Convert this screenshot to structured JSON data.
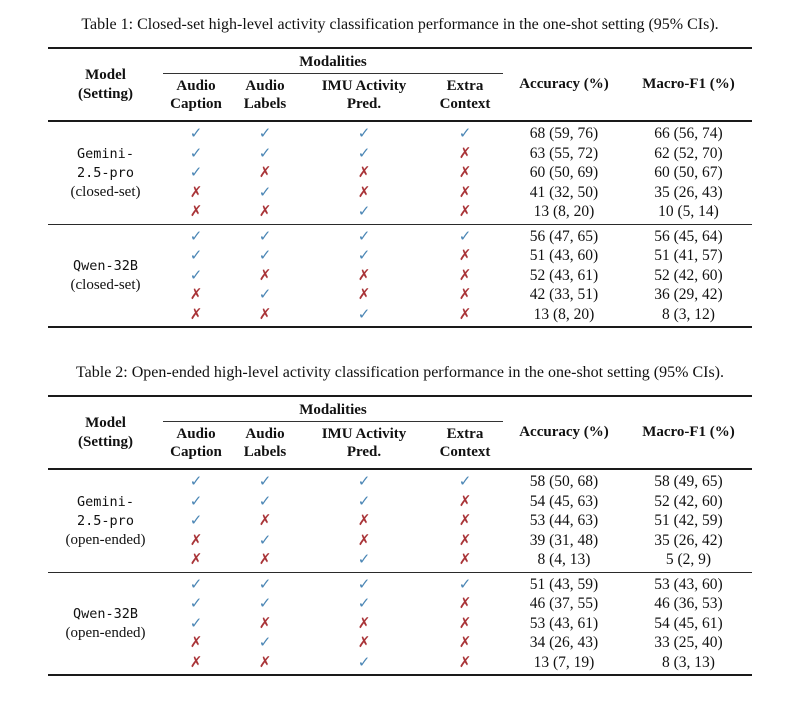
{
  "icons": {
    "check": "✓",
    "cross": "✗"
  },
  "colors": {
    "check_blue": "#4b86b5",
    "cross_red": "#a93438",
    "rule": "#1a1a1a",
    "text": "#111111",
    "background": "#ffffff"
  },
  "tables": [
    {
      "caption": "Table 1: Closed-set high-level activity classification performance in the one-shot setting (95% CIs).",
      "header": {
        "model_line1": "Model",
        "model_line2": "(Setting)",
        "modalities": "Modalities",
        "modality_columns": [
          {
            "line1": "Audio",
            "line2": "Caption"
          },
          {
            "line1": "Audio",
            "line2": "Labels"
          },
          {
            "line1": "IMU Activity",
            "line2": "Pred."
          },
          {
            "line1": "Extra",
            "line2": "Context"
          }
        ],
        "accuracy": "Accuracy (%)",
        "macro_f1": "Macro-F1 (%)"
      },
      "sections": [
        {
          "model_lines": [
            "Gemini-",
            "2.5-pro"
          ],
          "setting": "(closed-set)",
          "rows": [
            {
              "modalities": [
                true,
                true,
                true,
                true
              ],
              "accuracy": "68 (59, 76)",
              "macro_f1": "66 (56, 74)"
            },
            {
              "modalities": [
                true,
                true,
                true,
                false
              ],
              "accuracy": "63 (55, 72)",
              "macro_f1": "62 (52, 70)"
            },
            {
              "modalities": [
                true,
                false,
                false,
                false
              ],
              "accuracy": "60 (50, 69)",
              "macro_f1": "60 (50, 67)"
            },
            {
              "modalities": [
                false,
                true,
                false,
                false
              ],
              "accuracy": "41 (32, 50)",
              "macro_f1": "35 (26, 43)"
            },
            {
              "modalities": [
                false,
                false,
                true,
                false
              ],
              "accuracy": "13 (8, 20)",
              "macro_f1": "10 (5, 14)"
            }
          ]
        },
        {
          "model_lines": [
            "Qwen-32B"
          ],
          "setting": "(closed-set)",
          "rows": [
            {
              "modalities": [
                true,
                true,
                true,
                true
              ],
              "accuracy": "56 (47, 65)",
              "macro_f1": "56 (45, 64)"
            },
            {
              "modalities": [
                true,
                true,
                true,
                false
              ],
              "accuracy": "51 (43, 60)",
              "macro_f1": "51 (41, 57)"
            },
            {
              "modalities": [
                true,
                false,
                false,
                false
              ],
              "accuracy": "52 (43, 61)",
              "macro_f1": "52 (42, 60)"
            },
            {
              "modalities": [
                false,
                true,
                false,
                false
              ],
              "accuracy": "42 (33, 51)",
              "macro_f1": "36 (29, 42)"
            },
            {
              "modalities": [
                false,
                false,
                true,
                false
              ],
              "accuracy": "13 (8, 20)",
              "macro_f1": "8 (3, 12)"
            }
          ]
        }
      ]
    },
    {
      "caption": "Table 2: Open-ended high-level activity classification performance in the one-shot setting (95% CIs).",
      "header": {
        "model_line1": "Model",
        "model_line2": "(Setting)",
        "modalities": "Modalities",
        "modality_columns": [
          {
            "line1": "Audio",
            "line2": "Caption"
          },
          {
            "line1": "Audio",
            "line2": "Labels"
          },
          {
            "line1": "IMU Activity",
            "line2": "Pred."
          },
          {
            "line1": "Extra",
            "line2": "Context"
          }
        ],
        "accuracy": "Accuracy (%)",
        "macro_f1": "Macro-F1 (%)"
      },
      "sections": [
        {
          "model_lines": [
            "Gemini-",
            "2.5-pro"
          ],
          "setting": "(open-ended)",
          "rows": [
            {
              "modalities": [
                true,
                true,
                true,
                true
              ],
              "accuracy": "58 (50, 68)",
              "macro_f1": "58 (49, 65)"
            },
            {
              "modalities": [
                true,
                true,
                true,
                false
              ],
              "accuracy": "54 (45, 63)",
              "macro_f1": "52 (42, 60)"
            },
            {
              "modalities": [
                true,
                false,
                false,
                false
              ],
              "accuracy": "53 (44, 63)",
              "macro_f1": "51 (42, 59)"
            },
            {
              "modalities": [
                false,
                true,
                false,
                false
              ],
              "accuracy": "39 (31, 48)",
              "macro_f1": "35 (26, 42)"
            },
            {
              "modalities": [
                false,
                false,
                true,
                false
              ],
              "accuracy": "8 (4, 13)",
              "macro_f1": "5 (2, 9)"
            }
          ]
        },
        {
          "model_lines": [
            "Qwen-32B"
          ],
          "setting": "(open-ended)",
          "rows": [
            {
              "modalities": [
                true,
                true,
                true,
                true
              ],
              "accuracy": "51 (43, 59)",
              "macro_f1": "53 (43, 60)"
            },
            {
              "modalities": [
                true,
                true,
                true,
                false
              ],
              "accuracy": "46 (37, 55)",
              "macro_f1": "46 (36, 53)"
            },
            {
              "modalities": [
                true,
                false,
                false,
                false
              ],
              "accuracy": "53 (43, 61)",
              "macro_f1": "54 (45, 61)"
            },
            {
              "modalities": [
                false,
                true,
                false,
                false
              ],
              "accuracy": "34 (26, 43)",
              "macro_f1": "33 (25, 40)"
            },
            {
              "modalities": [
                false,
                false,
                true,
                false
              ],
              "accuracy": "13 (7, 19)",
              "macro_f1": "8 (3, 13)"
            }
          ]
        }
      ]
    }
  ]
}
